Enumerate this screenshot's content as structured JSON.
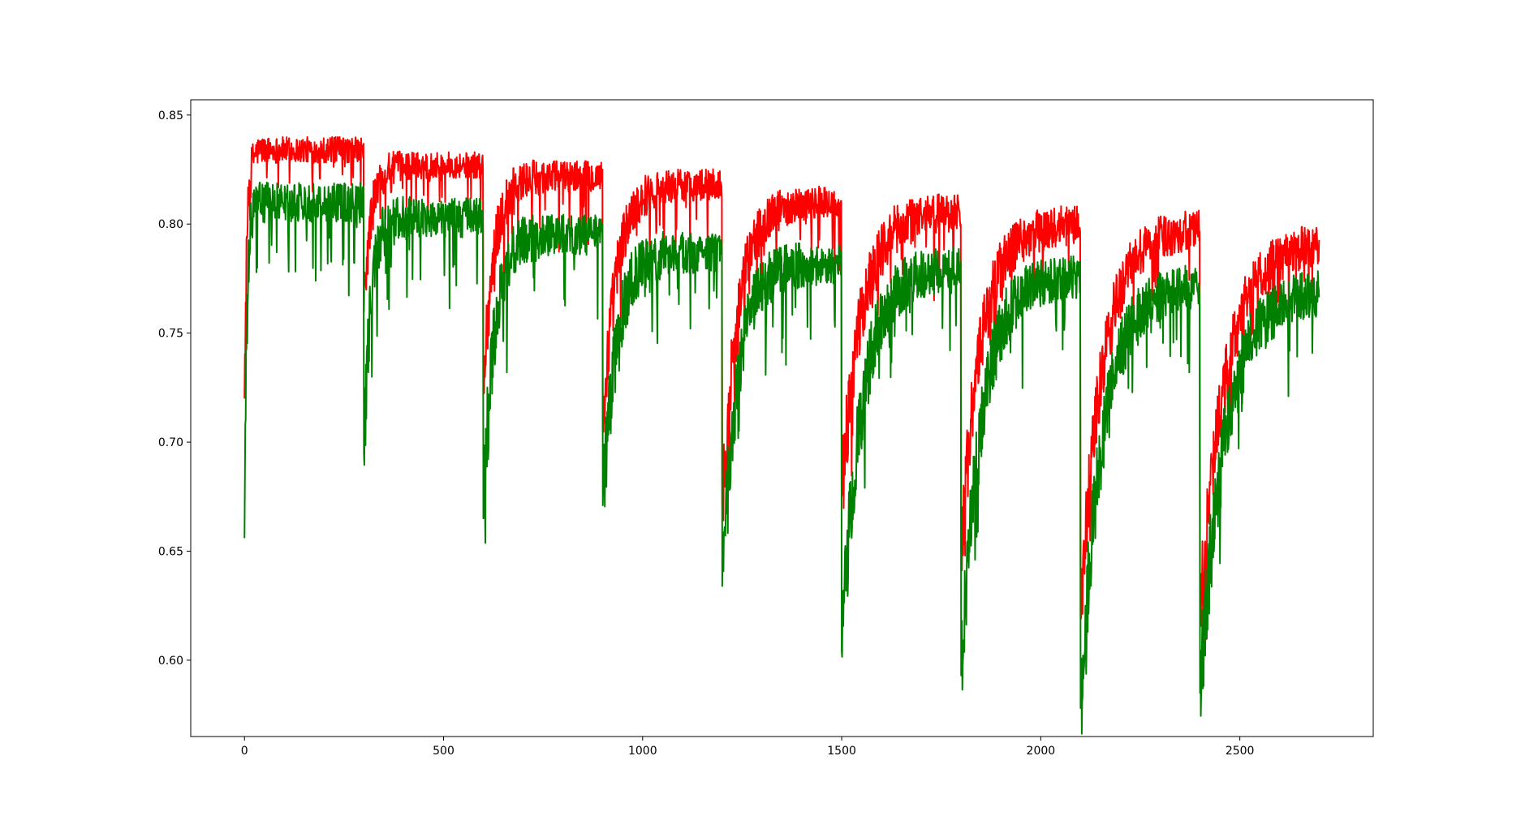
{
  "chart_data": {
    "type": "line",
    "title": "",
    "xlabel": "",
    "ylabel": "",
    "xlim": [
      -135,
      2835
    ],
    "ylim": [
      0.565,
      0.857
    ],
    "grid": false,
    "legend": "none",
    "x_ticks": [
      0,
      500,
      1000,
      1500,
      2000,
      2500
    ],
    "x_tick_labels": [
      "0",
      "500",
      "1000",
      "1500",
      "2000",
      "2500"
    ],
    "y_ticks": [
      0.6,
      0.65,
      0.7,
      0.75,
      0.8,
      0.85
    ],
    "y_tick_labels": [
      "0.60",
      "0.65",
      "0.70",
      "0.75",
      "0.80",
      "0.85"
    ],
    "x_range": [
      0,
      2700
    ],
    "cycle_length": 300,
    "series": [
      {
        "color": "#ff0000",
        "cycles": [
          {
            "start": 0.72,
            "plateau": 0.834,
            "rise": 14,
            "noise": 0.006
          },
          {
            "start": 0.76,
            "plateau": 0.827,
            "rise": 40,
            "noise": 0.006
          },
          {
            "start": 0.725,
            "plateau": 0.822,
            "rise": 60,
            "noise": 0.007
          },
          {
            "start": 0.705,
            "plateau": 0.818,
            "rise": 75,
            "noise": 0.007
          },
          {
            "start": 0.67,
            "plateau": 0.81,
            "rise": 85,
            "noise": 0.007
          },
          {
            "start": 0.675,
            "plateau": 0.806,
            "rise": 110,
            "noise": 0.008
          },
          {
            "start": 0.65,
            "plateau": 0.8,
            "rise": 110,
            "noise": 0.008
          },
          {
            "start": 0.62,
            "plateau": 0.798,
            "rise": 120,
            "noise": 0.008
          },
          {
            "start": 0.62,
            "plateau": 0.792,
            "rise": 140,
            "noise": 0.008
          }
        ]
      },
      {
        "color": "#008000",
        "cycles": [
          {
            "start": 0.656,
            "plateau": 0.81,
            "rise": 14,
            "noise": 0.009
          },
          {
            "start": 0.695,
            "plateau": 0.803,
            "rise": 40,
            "noise": 0.009
          },
          {
            "start": 0.665,
            "plateau": 0.795,
            "rise": 60,
            "noise": 0.009
          },
          {
            "start": 0.671,
            "plateau": 0.787,
            "rise": 75,
            "noise": 0.009
          },
          {
            "start": 0.634,
            "plateau": 0.782,
            "rise": 85,
            "noise": 0.009
          },
          {
            "start": 0.604,
            "plateau": 0.78,
            "rise": 110,
            "noise": 0.009
          },
          {
            "start": 0.593,
            "plateau": 0.776,
            "rise": 110,
            "noise": 0.009
          },
          {
            "start": 0.578,
            "plateau": 0.772,
            "rise": 120,
            "noise": 0.009
          },
          {
            "start": 0.585,
            "plateau": 0.77,
            "rise": 140,
            "noise": 0.009
          }
        ]
      }
    ]
  }
}
